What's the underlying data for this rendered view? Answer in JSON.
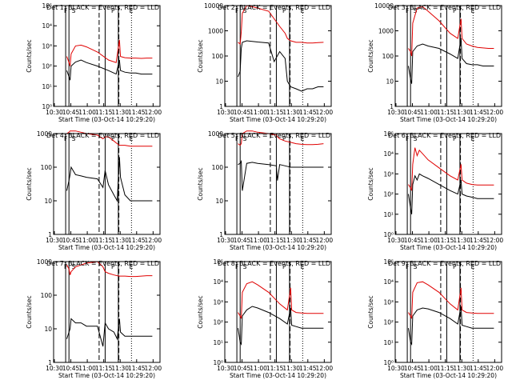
{
  "figure": {
    "x_ticks": [
      "10:30",
      "10:45",
      "11:00",
      "11:15",
      "11:30",
      "11:45",
      "12:00"
    ],
    "x_label": "Start Time (03-Oct-14 10:29:20)",
    "y_label": "Counts/sec",
    "colors": {
      "events": "#000000",
      "lld": "#e00000",
      "background": "#ffffff"
    }
  },
  "chart_data": [
    {
      "type": "line",
      "title": "Det 1: BLACK = Events, RED = LLD",
      "markers": [
        "F",
        "S",
        "P",
        "E"
      ],
      "scale": "log",
      "ylim_exp": [
        0,
        5
      ],
      "y_ticks": [
        "10⁰",
        "10¹",
        "10²",
        "10³",
        "10⁴",
        "10⁵"
      ],
      "x_minutes": [
        0,
        12,
        14,
        15,
        16,
        20,
        25,
        30,
        40,
        50,
        57,
        60,
        61,
        65,
        70,
        75,
        80,
        85,
        90
      ],
      "series": [
        {
          "name": "Events",
          "color": "#000000",
          "values": [
            null,
            60,
            30,
            20,
            100,
            160,
            200,
            150,
            100,
            60,
            40,
            200,
            60,
            50,
            45,
            45,
            40,
            40,
            40
          ]
        },
        {
          "name": "LLD",
          "color": "#e00000",
          "values": [
            null,
            300,
            150,
            100,
            400,
            1000,
            1100,
            900,
            500,
            200,
            150,
            2000,
            300,
            260,
            250,
            250,
            240,
            250,
            250
          ]
        }
      ],
      "vlines_minutes": {
        "solid": [
          11,
          14,
          47,
          59
        ],
        "dashed": [
          41.5,
          59.5
        ],
        "dotted": [
          71
        ]
      }
    },
    {
      "type": "line",
      "title": "Det 2: BLACK = Events, RED = LLD",
      "markers": [
        "F",
        "S",
        "P",
        "E"
      ],
      "scale": "log",
      "ylim_exp": [
        0,
        4
      ],
      "y_ticks": [
        "1",
        "10",
        "100",
        "1000",
        "10000"
      ],
      "x_minutes": [
        0,
        12,
        14,
        15,
        16,
        20,
        25,
        30,
        40,
        45,
        50,
        55,
        57,
        60,
        65,
        70,
        75,
        80,
        85,
        90
      ],
      "series": [
        {
          "name": "Events",
          "color": "#000000",
          "values": [
            null,
            15,
            25,
            200,
            350,
            400,
            380,
            360,
            330,
            60,
            150,
            80,
            10,
            6,
            5,
            4,
            5,
            5,
            6,
            6
          ]
        },
        {
          "name": "LLD",
          "color": "#e00000",
          "values": [
            null,
            350,
            300,
            900,
            5000,
            10000,
            9000,
            8000,
            6000,
            3000,
            1500,
            800,
            500,
            400,
            350,
            350,
            330,
            330,
            340,
            350
          ]
        }
      ],
      "vlines_minutes": {
        "solid": [
          11,
          14,
          47,
          59
        ],
        "dashed": [
          41.5,
          59.5
        ],
        "dotted": [
          71
        ]
      }
    },
    {
      "type": "line",
      "title": "Det 3: BLACK = Events, RED = LLD",
      "markers": [
        "F",
        "S",
        "P",
        "E"
      ],
      "scale": "log",
      "ylim_exp": [
        0,
        4
      ],
      "y_ticks": [
        "1",
        "10",
        "100",
        "1000",
        "10000"
      ],
      "x_minutes": [
        0,
        12,
        14,
        15,
        16,
        20,
        25,
        30,
        40,
        50,
        57,
        60,
        61,
        65,
        70,
        75,
        80,
        85,
        90
      ],
      "series": [
        {
          "name": "Events",
          "color": "#000000",
          "values": [
            null,
            40,
            12,
            8,
            150,
            250,
            300,
            250,
            200,
            120,
            80,
            500,
            80,
            50,
            45,
            45,
            40,
            40,
            40
          ]
        },
        {
          "name": "LLD",
          "color": "#e00000",
          "values": [
            null,
            200,
            150,
            100,
            2000,
            8000,
            9000,
            6000,
            2500,
            800,
            500,
            3000,
            500,
            300,
            250,
            220,
            210,
            200,
            200
          ]
        }
      ],
      "vlines_minutes": {
        "solid": [
          11,
          14,
          47,
          59
        ],
        "dashed": [
          41.5,
          59.5
        ],
        "dotted": [
          71
        ]
      }
    },
    {
      "type": "line",
      "title": "Det 4: BLACK = Events, RED = LLD",
      "markers": [
        "F",
        "S",
        "P",
        "E"
      ],
      "scale": "log",
      "ylim_exp": [
        0,
        3
      ],
      "y_ticks": [
        "1",
        "10",
        "100",
        "1000"
      ],
      "x_minutes": [
        0,
        12,
        14,
        15,
        16,
        20,
        25,
        30,
        40,
        45,
        47,
        50,
        55,
        58,
        60,
        61,
        65,
        70,
        75,
        80,
        85,
        90
      ],
      "series": [
        {
          "name": "Events",
          "color": "#000000",
          "values": [
            null,
            20,
            40,
            60,
            100,
            60,
            55,
            50,
            45,
            25,
            80,
            30,
            15,
            10,
            200,
            50,
            15,
            10,
            10,
            10,
            10,
            10
          ]
        },
        {
          "name": "LLD",
          "color": "#e00000",
          "values": [
            null,
            1000,
            1100,
            1200,
            1200,
            1200,
            1100,
            1000,
            900,
            700,
            800,
            800,
            600,
            500,
            450,
            450,
            450,
            420,
            420,
            420,
            420,
            420
          ]
        }
      ],
      "vlines_minutes": {
        "solid": [
          11,
          14,
          47,
          59
        ],
        "dashed": [
          41.5,
          59.5
        ],
        "dotted": [
          71
        ]
      }
    },
    {
      "type": "line",
      "title": "Det 5: BLACK = Events, RED = LLD",
      "markers": [
        "F",
        "S",
        "P",
        "E"
      ],
      "scale": "log",
      "ylim_exp": [
        0,
        3
      ],
      "y_ticks": [
        "1",
        "10",
        "100",
        "1000"
      ],
      "x_minutes": [
        0,
        12,
        14,
        15,
        16,
        20,
        25,
        30,
        40,
        47,
        48,
        50,
        55,
        60,
        65,
        70,
        75,
        80,
        85,
        90
      ],
      "series": [
        {
          "name": "Events",
          "color": "#000000",
          "values": [
            null,
            120,
            130,
            150,
            20,
            130,
            140,
            130,
            120,
            110,
            40,
            120,
            110,
            100,
            100,
            100,
            100,
            100,
            100,
            100
          ]
        },
        {
          "name": "LLD",
          "color": "#e00000",
          "values": [
            null,
            500,
            450,
            500,
            1000,
            1200,
            1200,
            1100,
            1000,
            900,
            800,
            700,
            600,
            550,
            500,
            480,
            470,
            470,
            480,
            500
          ]
        }
      ],
      "vlines_minutes": {
        "solid": [
          11,
          14,
          47,
          59
        ],
        "dashed": [
          41.5,
          59.5
        ],
        "dotted": [
          71
        ]
      }
    },
    {
      "type": "line",
      "title": "Det 6: BLACK = Events, RED = LLD",
      "markers": [
        "F",
        "S",
        "P",
        "E"
      ],
      "scale": "log",
      "ylim_exp": [
        0,
        5
      ],
      "y_ticks": [
        "10⁰",
        "10¹",
        "10²",
        "10³",
        "10⁴",
        "10⁵"
      ],
      "x_minutes": [
        0,
        12,
        14,
        15,
        16,
        18,
        20,
        22,
        25,
        30,
        40,
        50,
        57,
        60,
        61,
        65,
        70,
        75,
        80,
        85,
        90
      ],
      "series": [
        {
          "name": "Events",
          "color": "#000000",
          "values": [
            null,
            100,
            20,
            10,
            300,
            800,
            500,
            1000,
            800,
            600,
            300,
            150,
            100,
            500,
            100,
            80,
            70,
            60,
            60,
            60,
            60
          ]
        },
        {
          "name": "LLD",
          "color": "#e00000",
          "values": [
            null,
            300,
            200,
            150,
            3000,
            20000,
            8000,
            15000,
            10000,
            5000,
            2000,
            800,
            500,
            3000,
            500,
            350,
            300,
            280,
            280,
            280,
            280
          ]
        }
      ],
      "vlines_minutes": {
        "solid": [
          11,
          14,
          47,
          59
        ],
        "dashed": [
          41.5,
          59.5
        ],
        "dotted": [
          71
        ]
      }
    },
    {
      "type": "line",
      "title": "Det 7: BLACK = Events, RED = LLD",
      "markers": [
        "F",
        "S",
        "P",
        "E"
      ],
      "scale": "log",
      "ylim_exp": [
        0,
        3
      ],
      "y_ticks": [
        "1",
        "10",
        "100",
        "1000"
      ],
      "x_minutes": [
        0,
        12,
        14,
        15,
        16,
        20,
        25,
        30,
        40,
        45,
        47,
        50,
        55,
        58,
        60,
        61,
        65,
        70,
        75,
        80,
        85,
        90
      ],
      "series": [
        {
          "name": "Events",
          "color": "#000000",
          "values": [
            null,
            5,
            8,
            10,
            20,
            15,
            15,
            12,
            12,
            3,
            15,
            10,
            8,
            5,
            20,
            8,
            6,
            6,
            6,
            6,
            6,
            6
          ]
        },
        {
          "name": "LLD",
          "color": "#e00000",
          "values": [
            null,
            800,
            600,
            400,
            500,
            700,
            800,
            900,
            1000,
            700,
            500,
            450,
            400,
            380,
            370,
            370,
            370,
            360,
            360,
            370,
            380,
            380
          ]
        }
      ],
      "vlines_minutes": {
        "solid": [
          11,
          14,
          47,
          59
        ],
        "dashed": [
          41.5,
          59.5
        ],
        "dotted": [
          71
        ]
      }
    },
    {
      "type": "line",
      "title": "Det 8: BLACK = Events, RED = LLD",
      "markers": [
        "F",
        "S",
        "P",
        "E"
      ],
      "scale": "log",
      "ylim_exp": [
        0,
        5
      ],
      "y_ticks": [
        "10⁰",
        "10¹",
        "10²",
        "10³",
        "10⁴",
        "10⁵"
      ],
      "x_minutes": [
        0,
        12,
        14,
        15,
        16,
        20,
        25,
        30,
        40,
        50,
        57,
        60,
        61,
        65,
        70,
        75,
        80,
        85,
        90
      ],
      "series": [
        {
          "name": "Events",
          "color": "#000000",
          "values": [
            null,
            50,
            10,
            8,
            200,
            400,
            600,
            500,
            300,
            150,
            80,
            500,
            70,
            60,
            50,
            50,
            50,
            50,
            50
          ]
        },
        {
          "name": "LLD",
          "color": "#e00000",
          "values": [
            null,
            300,
            200,
            150,
            3000,
            8000,
            10000,
            7000,
            3000,
            800,
            400,
            5000,
            400,
            300,
            280,
            270,
            270,
            270,
            270
          ]
        }
      ],
      "vlines_minutes": {
        "solid": [
          11,
          14,
          47,
          59
        ],
        "dashed": [
          41.5,
          59.5
        ],
        "dotted": [
          71
        ]
      }
    },
    {
      "type": "line",
      "title": "Det 9: BLACK = Events, RED = LLD",
      "markers": [
        "F",
        "S",
        "P",
        "E"
      ],
      "scale": "log",
      "ylim_exp": [
        0,
        5
      ],
      "y_ticks": [
        "10⁰",
        "10¹",
        "10²",
        "10³",
        "10⁴",
        "10⁵"
      ],
      "x_minutes": [
        0,
        12,
        14,
        15,
        16,
        20,
        25,
        30,
        40,
        50,
        57,
        60,
        61,
        65,
        70,
        75,
        80,
        85,
        90
      ],
      "series": [
        {
          "name": "Events",
          "color": "#000000",
          "values": [
            null,
            50,
            10,
            8,
            200,
            400,
            500,
            450,
            300,
            150,
            80,
            600,
            70,
            60,
            50,
            50,
            50,
            50,
            50
          ]
        },
        {
          "name": "LLD",
          "color": "#e00000",
          "values": [
            null,
            300,
            200,
            150,
            3000,
            9000,
            10000,
            7000,
            3000,
            800,
            400,
            5000,
            400,
            300,
            280,
            270,
            270,
            270,
            270
          ]
        }
      ],
      "vlines_minutes": {
        "solid": [
          11,
          14,
          47,
          59
        ],
        "dashed": [
          41.5,
          59.5
        ],
        "dotted": [
          71
        ]
      }
    }
  ]
}
